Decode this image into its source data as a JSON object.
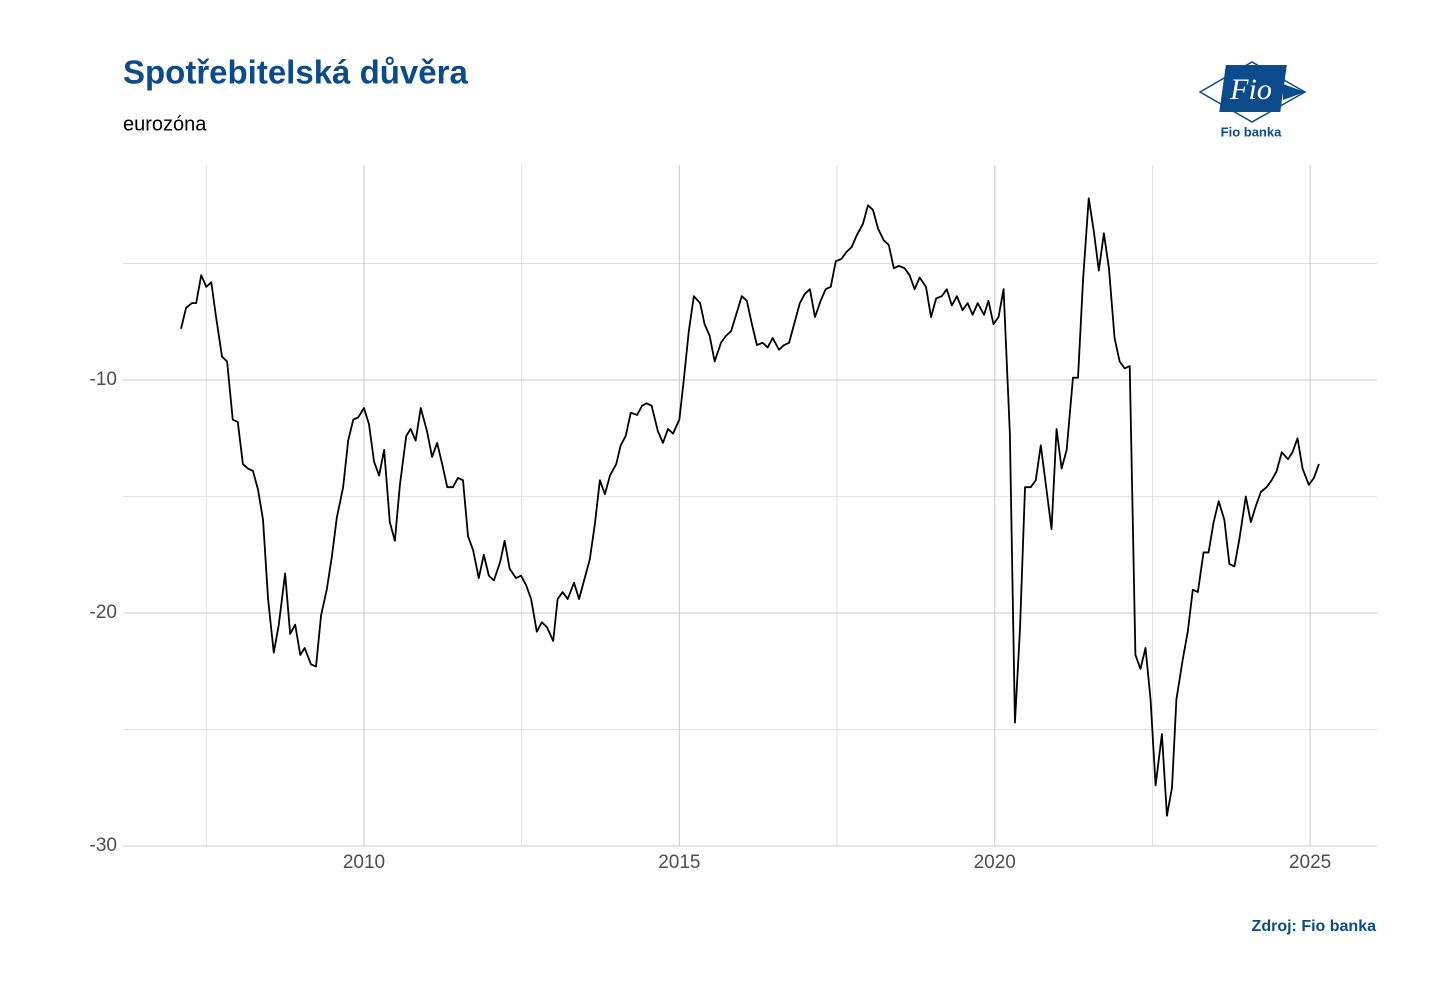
{
  "chart_data": {
    "type": "line",
    "title": "Spotřebitelská důvěra",
    "subtitle": "eurozóna",
    "source": "Zdroj: Fio banka",
    "color": "#000000",
    "grid": true,
    "minor_grid": true,
    "xlim": [
      2006.18,
      2026.06
    ],
    "xticks": [
      2010,
      2015,
      2020,
      2025
    ],
    "ylim": [
      -30,
      -0.77
    ],
    "yticks": [
      -30,
      -20,
      -10
    ],
    "x": [
      2007.1,
      2007.18,
      2007.27,
      2007.34,
      2007.42,
      2007.5,
      2007.58,
      2007.65,
      2007.75,
      2007.83,
      2007.92,
      2008.0,
      2008.08,
      2008.16,
      2008.24,
      2008.32,
      2008.4,
      2008.48,
      2008.57,
      2008.65,
      2008.75,
      2008.83,
      2008.91,
      2008.99,
      2009.06,
      2009.16,
      2009.24,
      2009.32,
      2009.41,
      2009.49,
      2009.57,
      2009.67,
      2009.75,
      2009.83,
      2009.91,
      2010.0,
      2010.08,
      2010.16,
      2010.24,
      2010.32,
      2010.41,
      2010.49,
      2010.57,
      2010.67,
      2010.74,
      2010.82,
      2010.9,
      2011.0,
      2011.08,
      2011.16,
      2011.24,
      2011.32,
      2011.41,
      2011.49,
      2011.57,
      2011.65,
      2011.73,
      2011.82,
      2011.9,
      2011.98,
      2012.06,
      2012.16,
      2012.23,
      2012.31,
      2012.41,
      2012.49,
      2012.57,
      2012.65,
      2012.74,
      2012.82,
      2012.9,
      2013.0,
      2013.07,
      2013.15,
      2013.23,
      2013.33,
      2013.41,
      2013.49,
      2013.58,
      2013.66,
      2013.74,
      2013.82,
      2013.9,
      2014.0,
      2014.07,
      2014.15,
      2014.23,
      2014.33,
      2014.41,
      2014.48,
      2014.56,
      2014.66,
      2014.74,
      2014.82,
      2014.9,
      2015.0,
      2015.07,
      2015.15,
      2015.23,
      2015.33,
      2015.4,
      2015.48,
      2015.56,
      2015.66,
      2015.74,
      2015.82,
      2015.9,
      2015.99,
      2016.07,
      2016.15,
      2016.23,
      2016.32,
      2016.4,
      2016.48,
      2016.58,
      2016.66,
      2016.74,
      2016.82,
      2016.91,
      2016.99,
      2017.07,
      2017.15,
      2017.24,
      2017.32,
      2017.4,
      2017.48,
      2017.57,
      2017.65,
      2017.73,
      2017.81,
      2017.91,
      2017.99,
      2018.07,
      2018.15,
      2018.24,
      2018.32,
      2018.4,
      2018.48,
      2018.57,
      2018.65,
      2018.73,
      2018.81,
      2018.91,
      2018.99,
      2019.07,
      2019.16,
      2019.24,
      2019.32,
      2019.4,
      2019.49,
      2019.57,
      2019.65,
      2019.73,
      2019.83,
      2019.9,
      2019.98,
      2020.06,
      2020.14,
      2020.24,
      2020.32,
      2020.4,
      2020.48,
      2020.57,
      2020.65,
      2020.73,
      2020.82,
      2020.9,
      2020.98,
      2021.06,
      2021.14,
      2021.24,
      2021.32,
      2021.4,
      2021.49,
      2021.57,
      2021.65,
      2021.73,
      2021.81,
      2021.9,
      2021.98,
      2022.06,
      2022.14,
      2022.23,
      2022.31,
      2022.39,
      2022.47,
      2022.55,
      2022.65,
      2022.73,
      2022.81,
      2022.88,
      2022.98,
      2023.06,
      2023.14,
      2023.22,
      2023.31,
      2023.39,
      2023.47,
      2023.55,
      2023.64,
      2023.72,
      2023.8,
      2023.88,
      2023.98,
      2024.06,
      2024.14,
      2024.22,
      2024.31,
      2024.39,
      2024.47,
      2024.55,
      2024.65,
      2024.72,
      2024.8,
      2024.88,
      2024.98,
      2025.06,
      2025.14
    ],
    "values": [
      -7.8,
      -6.9,
      -6.7,
      -6.7,
      -5.5,
      -6.0,
      -5.8,
      -7.2,
      -9.0,
      -9.2,
      -11.7,
      -11.8,
      -13.6,
      -13.8,
      -13.9,
      -14.7,
      -16.0,
      -19.4,
      -21.7,
      -20.5,
      -18.3,
      -20.9,
      -20.5,
      -21.8,
      -21.5,
      -22.2,
      -22.3,
      -20.1,
      -19.0,
      -17.6,
      -15.9,
      -14.6,
      -12.6,
      -11.7,
      -11.6,
      -11.2,
      -11.9,
      -13.5,
      -14.1,
      -13.0,
      -16.1,
      -16.9,
      -14.5,
      -12.4,
      -12.1,
      -12.6,
      -11.2,
      -12.2,
      -13.3,
      -12.7,
      -13.6,
      -14.6,
      -14.6,
      -14.2,
      -14.3,
      -16.7,
      -17.3,
      -18.5,
      -17.5,
      -18.4,
      -18.6,
      -17.8,
      -16.9,
      -18.1,
      -18.5,
      -18.4,
      -18.8,
      -19.4,
      -20.8,
      -20.4,
      -20.6,
      -21.2,
      -19.4,
      -19.1,
      -19.4,
      -18.7,
      -19.4,
      -18.6,
      -17.7,
      -16.2,
      -14.3,
      -14.9,
      -14.1,
      -13.6,
      -12.8,
      -12.4,
      -11.4,
      -11.5,
      -11.1,
      -11.0,
      -11.1,
      -12.2,
      -12.7,
      -12.1,
      -12.3,
      -11.7,
      -10.0,
      -7.9,
      -6.4,
      -6.7,
      -7.6,
      -8.1,
      -9.2,
      -8.4,
      -8.1,
      -7.9,
      -7.2,
      -6.4,
      -6.6,
      -7.6,
      -8.5,
      -8.4,
      -8.6,
      -8.2,
      -8.7,
      -8.5,
      -8.4,
      -7.6,
      -6.7,
      -6.3,
      -6.1,
      -7.3,
      -6.6,
      -6.1,
      -6.0,
      -4.9,
      -4.8,
      -4.5,
      -4.3,
      -3.8,
      -3.3,
      -2.5,
      -2.7,
      -3.5,
      -4.0,
      -4.2,
      -5.2,
      -5.1,
      -5.2,
      -5.5,
      -6.1,
      -5.6,
      -6.0,
      -7.3,
      -6.5,
      -6.4,
      -6.1,
      -6.8,
      -6.4,
      -7.0,
      -6.7,
      -7.2,
      -6.7,
      -7.2,
      -6.6,
      -7.6,
      -7.3,
      -6.1,
      -12.3,
      -24.7,
      -20.7,
      -14.6,
      -14.6,
      -14.3,
      -12.8,
      -14.7,
      -16.4,
      -12.1,
      -13.8,
      -13.0,
      -9.9,
      -9.9,
      -5.7,
      -2.2,
      -3.6,
      -5.3,
      -3.7,
      -5.2,
      -8.2,
      -9.2,
      -9.5,
      -9.4,
      -21.8,
      -22.4,
      -21.5,
      -23.7,
      -27.4,
      -25.2,
      -28.7,
      -27.5,
      -23.7,
      -22.0,
      -20.8,
      -19.0,
      -19.1,
      -17.4,
      -17.4,
      -16.1,
      -15.2,
      -16.0,
      -17.9,
      -18.0,
      -16.8,
      -15.0,
      -16.1,
      -15.4,
      -14.8,
      -14.6,
      -14.3,
      -13.9,
      -13.1,
      -13.4,
      -13.1,
      -12.5,
      -13.8,
      -14.5,
      -14.2,
      -13.6
    ]
  },
  "logo": {
    "mark": "Fio",
    "name": "Fio banka"
  }
}
